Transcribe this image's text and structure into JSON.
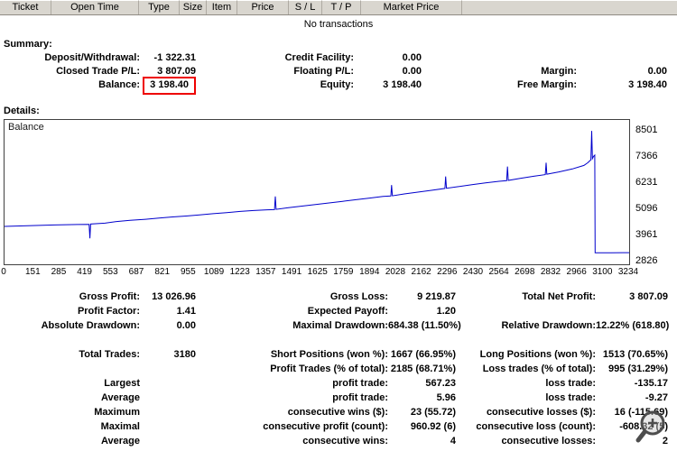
{
  "history_table": {
    "columns": [
      "Ticket",
      "Open Time",
      "Type",
      "Size",
      "Item",
      "Price",
      "S / L",
      "T / P",
      "Market Price"
    ],
    "empty_text": "No transactions"
  },
  "summary": {
    "title": "Summary:",
    "annotation": "start",
    "rows": [
      {
        "c1l": "Deposit/Withdrawal:",
        "c1v": "-1 322.31",
        "c2l": "Credit Facility:",
        "c2v": "0.00",
        "c3l": "",
        "c3v": ""
      },
      {
        "c1l": "Closed Trade P/L:",
        "c1v": "3 807.09",
        "c2l": "Floating P/L:",
        "c2v": "0.00",
        "c3l": "Margin:",
        "c3v": "0.00"
      },
      {
        "c1l": "Balance:",
        "c1v": "3 198.40",
        "c2l": "Equity:",
        "c2v": "3 198.40",
        "c3l": "Free Margin:",
        "c3v": "3 198.40"
      }
    ]
  },
  "details_title": "Details:",
  "chart_data": {
    "type": "line",
    "title": "Balance",
    "xlabel": "",
    "ylabel": "",
    "grid": false,
    "xlim": [
      0,
      3234
    ],
    "ylim": [
      2700,
      8980
    ],
    "y_ticks": [
      8501,
      7366,
      6231,
      5096,
      3961,
      2826
    ],
    "x_ticks": [
      0,
      151,
      285,
      419,
      553,
      687,
      821,
      955,
      1089,
      1223,
      1357,
      1491,
      1625,
      1759,
      1894,
      2028,
      2162,
      2296,
      2430,
      2564,
      2698,
      2832,
      2966,
      3100,
      3234
    ],
    "series": [
      {
        "name": "Balance",
        "color": "#0000cc",
        "points": [
          [
            0,
            4350
          ],
          [
            120,
            4380
          ],
          [
            260,
            4410
          ],
          [
            380,
            4430
          ],
          [
            438,
            4440
          ],
          [
            442,
            3830
          ],
          [
            446,
            4450
          ],
          [
            520,
            4490
          ],
          [
            580,
            4560
          ],
          [
            650,
            4610
          ],
          [
            730,
            4660
          ],
          [
            800,
            4710
          ],
          [
            870,
            4760
          ],
          [
            940,
            4800
          ],
          [
            1010,
            4850
          ],
          [
            1080,
            4900
          ],
          [
            1150,
            4950
          ],
          [
            1220,
            5000
          ],
          [
            1290,
            5040
          ],
          [
            1360,
            5070
          ],
          [
            1398,
            5080
          ],
          [
            1402,
            5650
          ],
          [
            1406,
            5090
          ],
          [
            1470,
            5160
          ],
          [
            1540,
            5230
          ],
          [
            1610,
            5300
          ],
          [
            1680,
            5370
          ],
          [
            1750,
            5440
          ],
          [
            1820,
            5510
          ],
          [
            1890,
            5580
          ],
          [
            1960,
            5650
          ],
          [
            2000,
            5670
          ],
          [
            2004,
            6150
          ],
          [
            2008,
            5680
          ],
          [
            2070,
            5760
          ],
          [
            2140,
            5840
          ],
          [
            2210,
            5920
          ],
          [
            2280,
            6000
          ],
          [
            2284,
            6520
          ],
          [
            2288,
            6010
          ],
          [
            2350,
            6080
          ],
          [
            2420,
            6160
          ],
          [
            2490,
            6240
          ],
          [
            2560,
            6310
          ],
          [
            2600,
            6340
          ],
          [
            2604,
            6950
          ],
          [
            2608,
            6350
          ],
          [
            2670,
            6440
          ],
          [
            2740,
            6530
          ],
          [
            2800,
            6600
          ],
          [
            2804,
            7120
          ],
          [
            2808,
            6620
          ],
          [
            2870,
            6720
          ],
          [
            2940,
            6850
          ],
          [
            3000,
            7000
          ],
          [
            3020,
            7120
          ],
          [
            3036,
            7250
          ],
          [
            3040,
            8501
          ],
          [
            3044,
            7300
          ],
          [
            3050,
            7400
          ],
          [
            3056,
            7450
          ],
          [
            3058,
            3198
          ],
          [
            3140,
            3198
          ],
          [
            3200,
            3205
          ],
          [
            3234,
            3205
          ]
        ]
      }
    ]
  },
  "stats": {
    "rows": [
      [
        "Gross Profit:",
        "13 026.96",
        "Gross Loss:",
        "9 219.87",
        "Total Net Profit:",
        "3 807.09"
      ],
      [
        "Profit Factor:",
        "1.41",
        "Expected Payoff:",
        "1.20",
        "",
        ""
      ],
      [
        "Absolute Drawdown:",
        "0.00",
        "Maximal Drawdown:",
        "684.38 (11.50%)",
        "Relative Drawdown:",
        "12.22% (618.80)"
      ],
      [
        "",
        "",
        "",
        "",
        "",
        ""
      ],
      [
        "Total Trades:",
        "3180",
        "Short Positions (won %):",
        "1667 (66.95%)",
        "Long Positions (won %):",
        "1513 (70.65%)"
      ],
      [
        "",
        "",
        "Profit Trades (% of total):",
        "2185 (68.71%)",
        "Loss trades (% of total):",
        "995 (31.29%)"
      ],
      [
        "Largest",
        "",
        "profit trade:",
        "567.23",
        "loss trade:",
        "-135.17"
      ],
      [
        "Average",
        "",
        "profit trade:",
        "5.96",
        "loss trade:",
        "-9.27"
      ],
      [
        "Maximum",
        "",
        "consecutive wins ($):",
        "23 (55.72)",
        "consecutive losses ($):",
        "16 (-115.69)"
      ],
      [
        "Maximal",
        "",
        "consecutive profit (count):",
        "960.92 (6)",
        "consecutive loss (count):",
        "-608.32 (5)"
      ],
      [
        "Average",
        "",
        "consecutive wins:",
        "4",
        "consecutive losses:",
        "2"
      ]
    ]
  },
  "icons": {
    "magnifier": "magnifier"
  }
}
